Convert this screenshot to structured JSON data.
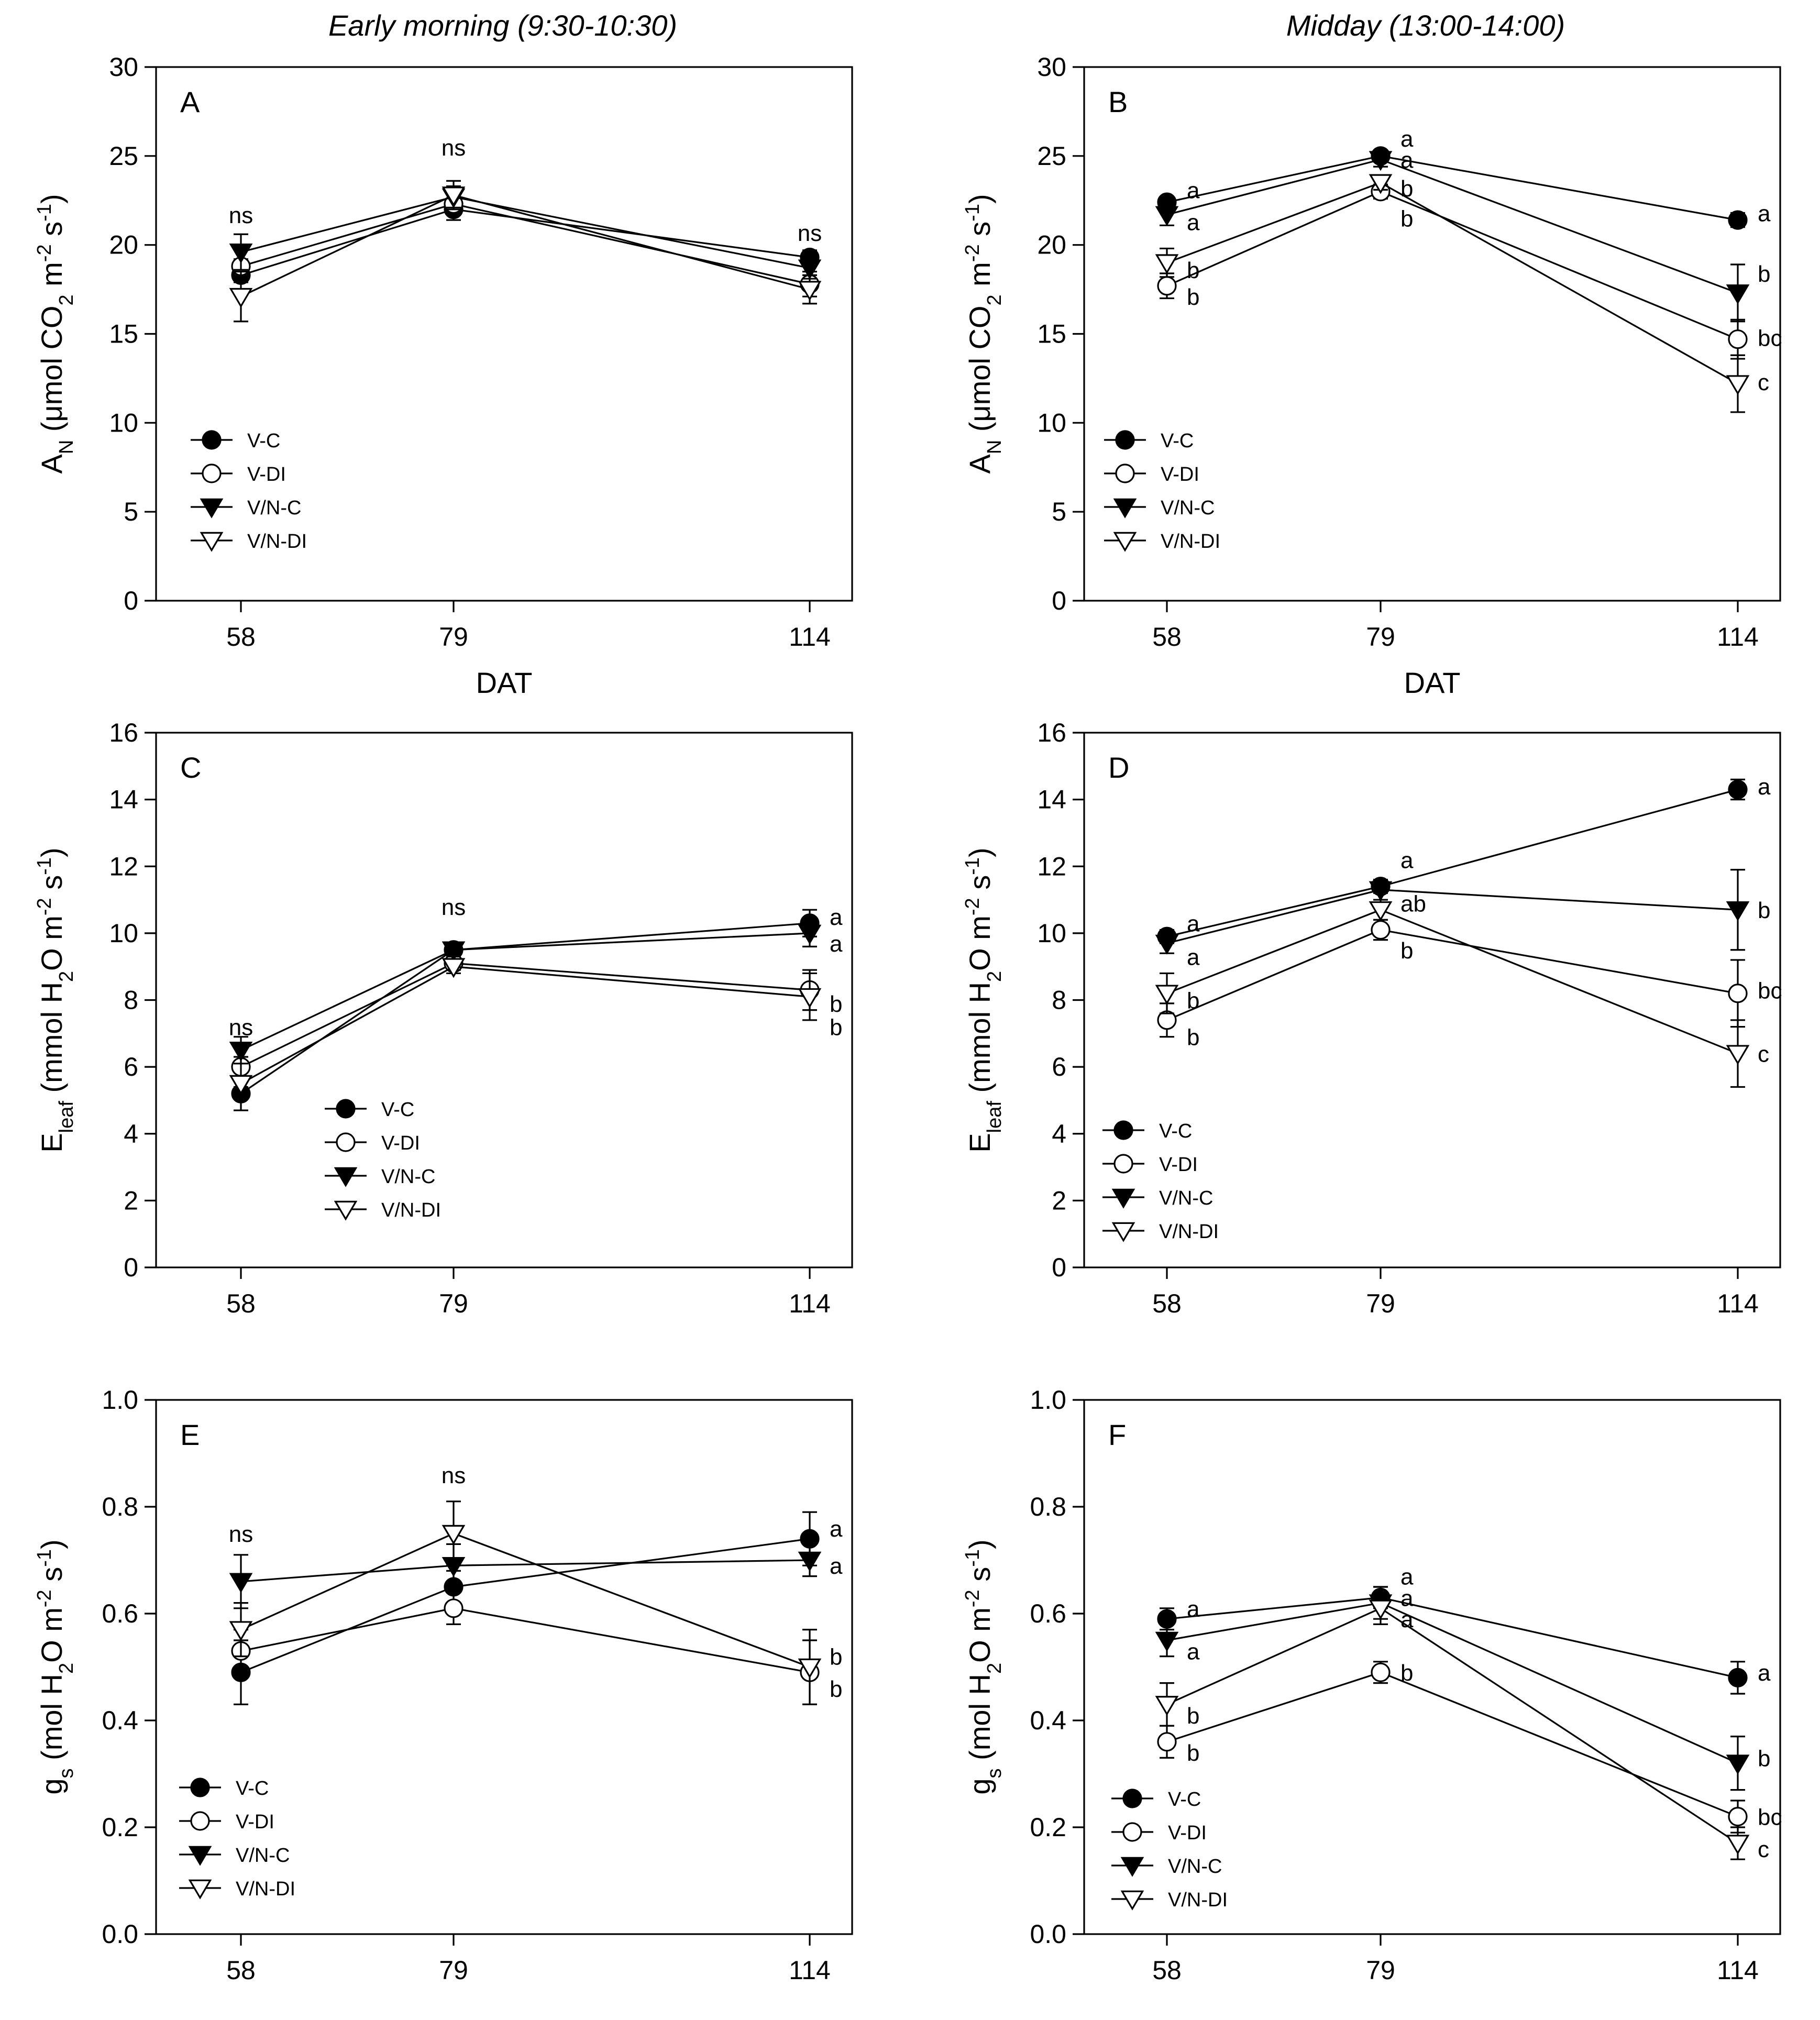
{
  "column_titles": [
    "Early morning (9:30-10:30)",
    "Midday (13:00-14:00)"
  ],
  "xlabel": "DAT",
  "legend_series": [
    "V-C",
    "V-DI",
    "V/N-C",
    "V/N-DI"
  ],
  "chart_data": [
    {
      "type": "line",
      "panel": "A",
      "column": "Early morning (9:30-10:30)",
      "x": [
        58,
        79,
        114
      ],
      "xticks": [
        "58",
        "79",
        "114"
      ],
      "xlabel": "DAT",
      "ylabel": "AN (μmol CO2 m-2 s-1)",
      "ylim": [
        0,
        30
      ],
      "yticks": [
        "0",
        "5",
        "10",
        "15",
        "20",
        "25",
        "30"
      ],
      "legend_position": "lower-left",
      "series": [
        {
          "name": "V-C",
          "values": [
            18.3,
            22.0,
            19.3
          ],
          "errors": [
            0.4,
            0.6,
            0.4
          ]
        },
        {
          "name": "V-DI",
          "values": [
            18.8,
            22.3,
            17.8
          ],
          "errors": [
            0.4,
            0.6,
            0.7
          ]
        },
        {
          "name": "V/N-C",
          "values": [
            19.6,
            22.7,
            18.7
          ],
          "errors": [
            1.0,
            0.6,
            0.6
          ]
        },
        {
          "name": "V/N-DI",
          "values": [
            17.1,
            22.8,
            17.5
          ],
          "errors": [
            1.4,
            0.8,
            0.8
          ]
        }
      ],
      "annotations": [
        {
          "x": 58,
          "y": 21.7,
          "text": "ns"
        },
        {
          "x": 79,
          "y": 25.5,
          "text": "ns"
        },
        {
          "x": 114,
          "y": 20.7,
          "text": "ns"
        }
      ]
    },
    {
      "type": "line",
      "panel": "B",
      "column": "Midday (13:00-14:00)",
      "x": [
        58,
        79,
        114
      ],
      "xticks": [
        "58",
        "79",
        "114"
      ],
      "xlabel": "DAT",
      "ylabel": "AN (μmol CO2 m-2 s-1)",
      "ylim": [
        0,
        30
      ],
      "yticks": [
        "0",
        "5",
        "10",
        "15",
        "20",
        "25",
        "30"
      ],
      "legend_position": "lower-left",
      "series": [
        {
          "name": "V-C",
          "values": [
            22.4,
            25.0,
            21.4
          ],
          "errors": [
            0.3,
            0.3,
            0.4
          ]
        },
        {
          "name": "V-DI",
          "values": [
            17.7,
            23.0,
            14.7
          ],
          "errors": [
            0.7,
            0.4,
            1.1
          ]
        },
        {
          "name": "V/N-C",
          "values": [
            21.7,
            24.8,
            17.3
          ],
          "errors": [
            0.6,
            0.4,
            1.6
          ]
        },
        {
          "name": "V/N-DI",
          "values": [
            19.0,
            23.5,
            12.2
          ],
          "errors": [
            0.8,
            0.4,
            1.6
          ]
        }
      ],
      "annotations": [
        {
          "x": 58,
          "y": 23.1,
          "text": "a"
        },
        {
          "x": 58,
          "y": 21.3,
          "text": "a"
        },
        {
          "x": 58,
          "y": 18.6,
          "text": "b"
        },
        {
          "x": 58,
          "y": 17.1,
          "text": "b"
        },
        {
          "x": 79,
          "y": 26.0,
          "text": "a"
        },
        {
          "x": 79,
          "y": 24.8,
          "text": "a"
        },
        {
          "x": 79,
          "y": 23.2,
          "text": "b"
        },
        {
          "x": 79,
          "y": 21.5,
          "text": "b"
        },
        {
          "x": 114,
          "y": 21.8,
          "text": "a"
        },
        {
          "x": 114,
          "y": 18.4,
          "text": "b"
        },
        {
          "x": 114,
          "y": 14.8,
          "text": "bc"
        },
        {
          "x": 114,
          "y": 12.3,
          "text": "c"
        }
      ]
    },
    {
      "type": "line",
      "panel": "C",
      "column": "Early morning (9:30-10:30)",
      "x": [
        58,
        79,
        114
      ],
      "xticks": [
        "58",
        "79",
        "114"
      ],
      "xlabel": "",
      "ylabel": "Eleaf (mmol H2O m-2 s-1)",
      "ylim": [
        0,
        16
      ],
      "yticks": [
        "0",
        "2",
        "4",
        "6",
        "8",
        "10",
        "12",
        "14",
        "16"
      ],
      "legend_position": "lower-center",
      "series": [
        {
          "name": "V-C",
          "values": [
            5.2,
            9.5,
            10.3
          ],
          "errors": [
            0.5,
            0.2,
            0.4
          ]
        },
        {
          "name": "V-DI",
          "values": [
            6.0,
            9.1,
            8.3
          ],
          "errors": [
            0.6,
            0.2,
            0.6
          ]
        },
        {
          "name": "V/N-C",
          "values": [
            6.5,
            9.5,
            10.0
          ],
          "errors": [
            0.4,
            0.2,
            0.4
          ]
        },
        {
          "name": "V/N-DI",
          "values": [
            5.5,
            9.0,
            8.1
          ],
          "errors": [
            0.8,
            0.2,
            0.7
          ]
        }
      ],
      "annotations": [
        {
          "x": 58,
          "y": 7.2,
          "text": "ns"
        },
        {
          "x": 79,
          "y": 10.8,
          "text": "ns"
        },
        {
          "x": 114,
          "y": 10.5,
          "text": "a"
        },
        {
          "x": 114,
          "y": 9.7,
          "text": "a"
        },
        {
          "x": 114,
          "y": 7.9,
          "text": "b"
        },
        {
          "x": 114,
          "y": 7.2,
          "text": "b"
        }
      ]
    },
    {
      "type": "line",
      "panel": "D",
      "column": "Midday (13:00-14:00)",
      "x": [
        58,
        79,
        114
      ],
      "xticks": [
        "58",
        "79",
        "114"
      ],
      "xlabel": "",
      "ylabel": "Eleaf (mmol H2O m-2 s-1)",
      "ylim": [
        0,
        16
      ],
      "yticks": [
        "0",
        "2",
        "4",
        "6",
        "8",
        "10",
        "12",
        "14",
        "16"
      ],
      "legend_position": "lower-left",
      "series": [
        {
          "name": "V-C",
          "values": [
            9.9,
            11.4,
            14.3
          ],
          "errors": [
            0.2,
            0.2,
            0.3
          ]
        },
        {
          "name": "V-DI",
          "values": [
            7.4,
            10.1,
            8.2
          ],
          "errors": [
            0.5,
            0.3,
            1.0
          ]
        },
        {
          "name": "V/N-C",
          "values": [
            9.7,
            11.3,
            10.7
          ],
          "errors": [
            0.3,
            0.3,
            1.2
          ]
        },
        {
          "name": "V/N-DI",
          "values": [
            8.2,
            10.7,
            6.4
          ],
          "errors": [
            0.6,
            0.3,
            1.0
          ]
        }
      ],
      "annotations": [
        {
          "x": 58,
          "y": 10.3,
          "text": "a"
        },
        {
          "x": 58,
          "y": 9.3,
          "text": "a"
        },
        {
          "x": 58,
          "y": 8.0,
          "text": "b"
        },
        {
          "x": 58,
          "y": 6.9,
          "text": "b"
        },
        {
          "x": 79,
          "y": 12.2,
          "text": "a"
        },
        {
          "x": 79,
          "y": 10.9,
          "text": "ab"
        },
        {
          "x": 79,
          "y": 9.5,
          "text": "b"
        },
        {
          "x": 114,
          "y": 14.4,
          "text": "a"
        },
        {
          "x": 114,
          "y": 10.7,
          "text": "b"
        },
        {
          "x": 114,
          "y": 8.3,
          "text": "bc"
        },
        {
          "x": 114,
          "y": 6.4,
          "text": "c"
        }
      ]
    },
    {
      "type": "line",
      "panel": "E",
      "column": "Early morning (9:30-10:30)",
      "x": [
        58,
        79,
        114
      ],
      "xticks": [
        "58",
        "79",
        "114"
      ],
      "xlabel": "",
      "ylabel": "gs (mol H2O m-2 s-1)",
      "ylim": [
        0,
        1.0
      ],
      "yticks": [
        "0.0",
        "0.2",
        "0.4",
        "0.6",
        "0.8",
        "1.0"
      ],
      "legend_position": "lower-left",
      "series": [
        {
          "name": "V-C",
          "values": [
            0.49,
            0.65,
            0.74
          ],
          "errors": [
            0.06,
            0.03,
            0.05
          ]
        },
        {
          "name": "V-DI",
          "values": [
            0.53,
            0.61,
            0.49
          ],
          "errors": [
            0.04,
            0.03,
            0.06
          ]
        },
        {
          "name": "V/N-C",
          "values": [
            0.66,
            0.69,
            0.7
          ],
          "errors": [
            0.05,
            0.04,
            0.03
          ]
        },
        {
          "name": "V/N-DI",
          "values": [
            0.57,
            0.75,
            0.5
          ],
          "errors": [
            0.05,
            0.06,
            0.07
          ]
        }
      ],
      "annotations": [
        {
          "x": 58,
          "y": 0.75,
          "text": "ns"
        },
        {
          "x": 79,
          "y": 0.86,
          "text": "ns"
        },
        {
          "x": 114,
          "y": 0.76,
          "text": "a"
        },
        {
          "x": 114,
          "y": 0.69,
          "text": "a"
        },
        {
          "x": 114,
          "y": 0.52,
          "text": "b"
        },
        {
          "x": 114,
          "y": 0.46,
          "text": "b"
        }
      ]
    },
    {
      "type": "line",
      "panel": "F",
      "column": "Midday (13:00-14:00)",
      "x": [
        58,
        79,
        114
      ],
      "xticks": [
        "58",
        "79",
        "114"
      ],
      "xlabel": "",
      "ylabel": "gs (mol H2O m-2 s-1)",
      "ylim": [
        0,
        1.0
      ],
      "yticks": [
        "0.0",
        "0.2",
        "0.4",
        "0.6",
        "0.8",
        "1.0"
      ],
      "legend_position": "lower-left",
      "series": [
        {
          "name": "V-C",
          "values": [
            0.59,
            0.63,
            0.48
          ],
          "errors": [
            0.02,
            0.02,
            0.03
          ]
        },
        {
          "name": "V-DI",
          "values": [
            0.36,
            0.49,
            0.22
          ],
          "errors": [
            0.03,
            0.02,
            0.03
          ]
        },
        {
          "name": "V/N-C",
          "values": [
            0.55,
            0.62,
            0.32
          ],
          "errors": [
            0.03,
            0.03,
            0.05
          ]
        },
        {
          "name": "V/N-DI",
          "values": [
            0.43,
            0.61,
            0.17
          ],
          "errors": [
            0.04,
            0.03,
            0.03
          ]
        }
      ],
      "annotations": [
        {
          "x": 58,
          "y": 0.61,
          "text": "a"
        },
        {
          "x": 58,
          "y": 0.53,
          "text": "a"
        },
        {
          "x": 58,
          "y": 0.41,
          "text": "b"
        },
        {
          "x": 58,
          "y": 0.34,
          "text": "b"
        },
        {
          "x": 79,
          "y": 0.67,
          "text": "a"
        },
        {
          "x": 79,
          "y": 0.63,
          "text": "a"
        },
        {
          "x": 79,
          "y": 0.59,
          "text": "a"
        },
        {
          "x": 79,
          "y": 0.49,
          "text": "b"
        },
        {
          "x": 114,
          "y": 0.49,
          "text": "a"
        },
        {
          "x": 114,
          "y": 0.33,
          "text": "b"
        },
        {
          "x": 114,
          "y": 0.22,
          "text": "bc"
        },
        {
          "x": 114,
          "y": 0.16,
          "text": "c"
        }
      ]
    }
  ]
}
